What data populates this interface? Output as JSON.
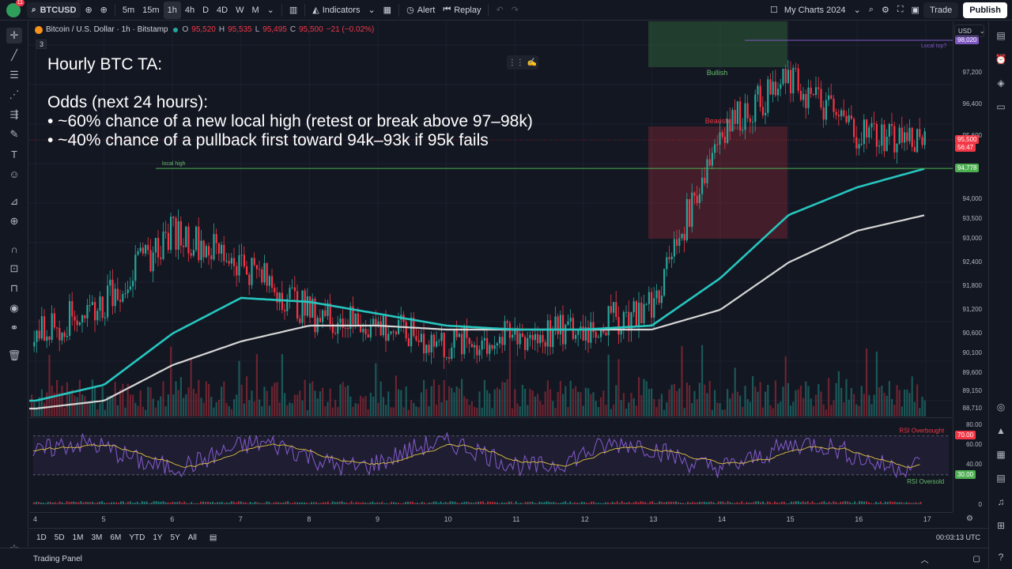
{
  "header": {
    "symbol": "BTCUSD",
    "avatar_badge": "11",
    "intervals": [
      "5m",
      "15m",
      "1h",
      "4h",
      "D",
      "4D",
      "W",
      "M"
    ],
    "active_interval": "1h",
    "indicators_label": "Indicators",
    "alert_label": "Alert",
    "replay_label": "Replay",
    "layout_name": "My Charts 2024",
    "trade_label": "Trade",
    "publish_label": "Publish"
  },
  "legend": {
    "title": "Bitcoin / U.S. Dollar · 1h · Bitstamp",
    "o_key": "O",
    "o_val": "95,520",
    "h_key": "H",
    "h_val": "95,535",
    "l_key": "L",
    "l_val": "95,495",
    "c_key": "C",
    "c_val": "95,500",
    "change": "−21 (−0.02%)",
    "indicator_count": "3"
  },
  "overlay": {
    "line1": "Hourly BTC TA:",
    "line2": "Odds (next 24 hours):",
    "line3": "• ~60% chance of a new local high (retest or break above 97–98k)",
    "line4": "• ~40% chance of a pullback first toward 94k–93k if 95k fails"
  },
  "annotations": {
    "bullish": "Bullish",
    "bearish": "Bearish",
    "local_high": "local high",
    "local_top": "Local top?",
    "rsi_overbought": "RSI Overbought",
    "rsi_oversold": "RSI Oversold"
  },
  "price_scale": {
    "currency": "USD",
    "labels": [
      "97,200",
      "96,400",
      "95,600",
      "94,000",
      "93,500",
      "93,000",
      "92,400",
      "91,800",
      "91,200",
      "90,600",
      "90,100",
      "89,600",
      "89,150",
      "88,710"
    ],
    "tag_top": "98,020",
    "tag_current": "95,500",
    "tag_countdown": "56:47",
    "tag_level": "94,778"
  },
  "rsi_scale": {
    "labels": [
      "80.00",
      "60.00",
      "40.00",
      "0"
    ],
    "tag_high": "70.00",
    "tag_low": "30.00"
  },
  "time_axis": {
    "labels": [
      "4",
      "5",
      "6",
      "7",
      "8",
      "9",
      "10",
      "11",
      "12",
      "13",
      "14",
      "15",
      "16",
      "17"
    ]
  },
  "range_bar": {
    "ranges": [
      "1D",
      "5D",
      "1M",
      "3M",
      "6M",
      "YTD",
      "1Y",
      "5Y",
      "All"
    ],
    "clock": "00:03:13 UTC"
  },
  "trading_panel_label": "Trading Panel",
  "colors": {
    "up": "#26a69a",
    "down": "#f23645",
    "ema_teal": "#26c6bf",
    "ma_white": "#d6d6d6",
    "rsi": "#7e57c2",
    "level_green": "#4caf50",
    "bg": "#131722"
  },
  "chart_data": {
    "type": "candlestick",
    "x": [
      "4",
      "5",
      "6",
      "7",
      "8",
      "9",
      "10",
      "11",
      "12",
      "13",
      "14",
      "15",
      "16",
      "17"
    ],
    "close": [
      90600,
      91400,
      93200,
      92400,
      91100,
      90800,
      90300,
      90500,
      90700,
      91300,
      95800,
      97000,
      95700,
      95500
    ],
    "high": [
      91000,
      92900,
      94300,
      93600,
      92100,
      91400,
      91000,
      90900,
      91900,
      92500,
      96600,
      98020,
      97000,
      95700
    ],
    "low": [
      89800,
      90500,
      91800,
      91000,
      89800,
      89700,
      89900,
      90100,
      90200,
      90900,
      91400,
      95000,
      94800,
      94700
    ],
    "ema_teal": [
      88900,
      89300,
      90600,
      91500,
      91400,
      91100,
      90800,
      90700,
      90700,
      90800,
      92000,
      93600,
      94300,
      94778
    ],
    "ma_white": [
      88700,
      88900,
      89800,
      90400,
      90800,
      90800,
      90700,
      90700,
      90700,
      90700,
      91200,
      92400,
      93200,
      93600
    ],
    "ylim": [
      88500,
      98500
    ]
  }
}
